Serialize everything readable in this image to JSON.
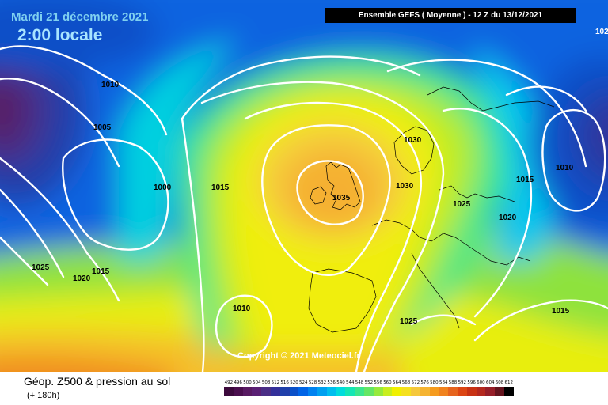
{
  "header": {
    "date": "Mardi 21 décembre 2021",
    "time": "2:00 locale",
    "run": "Ensemble GEFS  ( Moyenne )  - 12 Z du 13/12/2021",
    "corner": "102"
  },
  "copyright": "Copyright © 2021 Meteociel.fr",
  "footer": {
    "parameter": "Géop. Z500 & pression au sol",
    "lead": "(+ 180h)"
  },
  "isobars": [
    {
      "value": "1010"
    },
    {
      "value": "1005"
    },
    {
      "value": "1000"
    },
    {
      "value": "1015"
    },
    {
      "value": "1030"
    },
    {
      "value": "1035"
    },
    {
      "value": "1030"
    },
    {
      "value": "1025"
    },
    {
      "value": "1020"
    },
    {
      "value": "1015"
    },
    {
      "value": "1010"
    },
    {
      "value": "1025"
    },
    {
      "value": "1020"
    },
    {
      "value": "1015"
    },
    {
      "value": "1010"
    },
    {
      "value": "1025"
    },
    {
      "value": "1015"
    }
  ],
  "scale": [
    {
      "label": "492",
      "color": "#3c0a3c"
    },
    {
      "label": "496",
      "color": "#4a0f4e"
    },
    {
      "label": "500",
      "color": "#581a62"
    },
    {
      "label": "504",
      "color": "#5a2074"
    },
    {
      "label": "508",
      "color": "#4a2e86"
    },
    {
      "label": "512",
      "color": "#34309a"
    },
    {
      "label": "516",
      "color": "#2040aa"
    },
    {
      "label": "520",
      "color": "#0a50c8"
    },
    {
      "label": "524",
      "color": "#0064e6"
    },
    {
      "label": "528",
      "color": "#0082f0"
    },
    {
      "label": "532",
      "color": "#00a0f0"
    },
    {
      "label": "536",
      "color": "#00beee"
    },
    {
      "label": "540",
      "color": "#00dcdc"
    },
    {
      "label": "544",
      "color": "#14e6b4"
    },
    {
      "label": "548",
      "color": "#3ce68c"
    },
    {
      "label": "552",
      "color": "#64e664"
    },
    {
      "label": "556",
      "color": "#96ea3c"
    },
    {
      "label": "560",
      "color": "#c8ee1e"
    },
    {
      "label": "564",
      "color": "#f0f000"
    },
    {
      "label": "568",
      "color": "#f5e01e"
    },
    {
      "label": "572",
      "color": "#f5c83c"
    },
    {
      "label": "576",
      "color": "#f5b432"
    },
    {
      "label": "580",
      "color": "#f59b1e"
    },
    {
      "label": "584",
      "color": "#f0821e"
    },
    {
      "label": "588",
      "color": "#e6641e"
    },
    {
      "label": "592",
      "color": "#dc4614"
    },
    {
      "label": "596",
      "color": "#c83214"
    },
    {
      "label": "600",
      "color": "#b4281e"
    },
    {
      "label": "604",
      "color": "#961e28"
    },
    {
      "label": "608",
      "color": "#64141e"
    },
    {
      "label": "612",
      "color": "#000000"
    }
  ]
}
